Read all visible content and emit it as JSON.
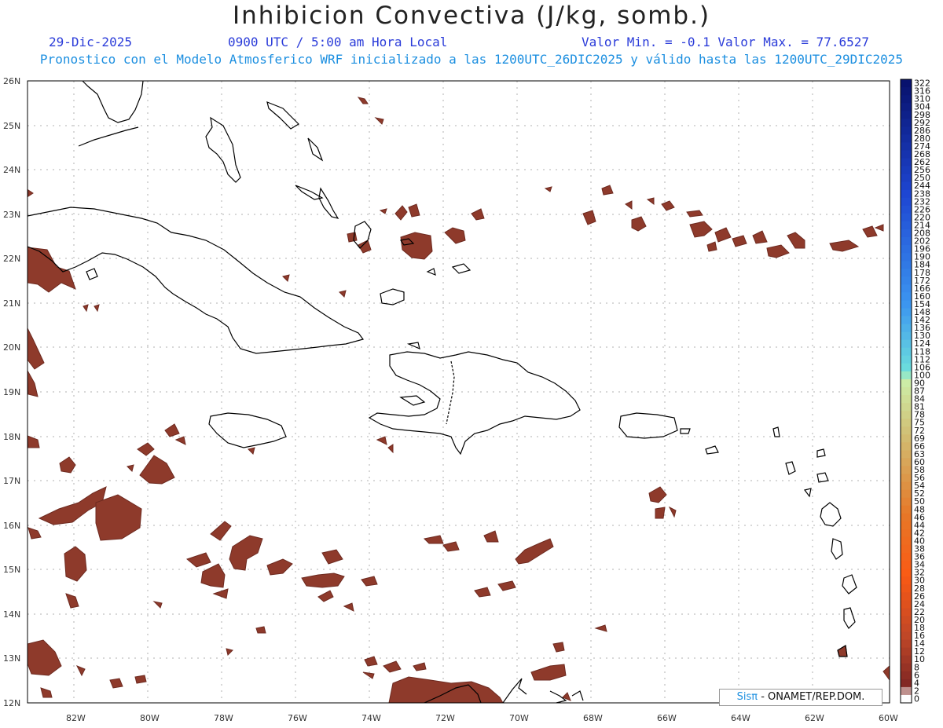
{
  "header": {
    "title": "Inhibicion Convectiva (J/kg, somb.)",
    "date": "29-Dic-2025",
    "time": "0900 UTC / 5:00 am Hora Local",
    "minmax": "Valor Min. = -0.1  Valor Max. = 77.6527",
    "model_line": "Pronostico con el Modelo Atmosferico WRF inicializado a las 1200UTC_26DIC2025 y válido hasta las  1200UTC_29DIC2025"
  },
  "map": {
    "lat_labels": [
      "26N",
      "25N",
      "24N",
      "23N",
      "22N",
      "21N",
      "20N",
      "19N",
      "18N",
      "17N",
      "16N",
      "15N",
      "14N",
      "13N",
      "12N"
    ],
    "lon_labels": [
      "82W",
      "80W",
      "78W",
      "76W",
      "74W",
      "72W",
      "70W",
      "68W",
      "66W",
      "64W",
      "62W",
      "60W"
    ]
  },
  "colorbar": {
    "labels": [
      "322",
      "316",
      "310",
      "304",
      "298",
      "292",
      "286",
      "280",
      "274",
      "268",
      "262",
      "256",
      "250",
      "244",
      "238",
      "232",
      "226",
      "220",
      "214",
      "208",
      "202",
      "196",
      "190",
      "184",
      "178",
      "172",
      "166",
      "160",
      "154",
      "148",
      "142",
      "136",
      "130",
      "124",
      "118",
      "112",
      "106",
      "100",
      "90",
      "87",
      "84",
      "81",
      "78",
      "75",
      "72",
      "69",
      "66",
      "63",
      "60",
      "58",
      "56",
      "54",
      "52",
      "50",
      "48",
      "46",
      "44",
      "42",
      "40",
      "38",
      "36",
      "34",
      "32",
      "30",
      "28",
      "26",
      "24",
      "22",
      "20",
      "18",
      "16",
      "14",
      "12",
      "10",
      "8",
      "6",
      "4",
      "2",
      "0"
    ]
  },
  "credit": {
    "sis": "Sisπ",
    "org": " - ONAMET/REP.DOM."
  },
  "colors": {
    "shade": "#8e3a2b",
    "shade_edge": "#7a2f24",
    "coast": "#000000",
    "grid": "#b0b0b0"
  }
}
